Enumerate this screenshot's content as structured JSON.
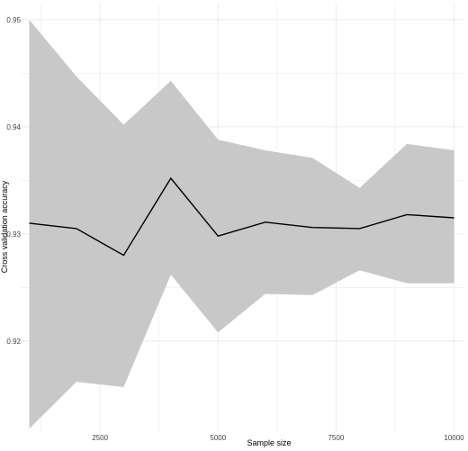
{
  "chart_data": {
    "type": "line",
    "xlabel": "Sample size",
    "ylabel": "Cross validation accuracy",
    "xlim": [
      800,
      10200
    ],
    "ylim": [
      0.9115,
      0.9515
    ],
    "x_ticks": [
      2500,
      5000,
      7500,
      10000
    ],
    "x_tick_labels": [
      "2500",
      "5000",
      "7500",
      "10000"
    ],
    "y_ticks": [
      0.92,
      0.93,
      0.94,
      0.95
    ],
    "y_tick_labels": [
      "0.92",
      "0.93",
      "0.94",
      "0.95"
    ],
    "grid": true,
    "series": [
      {
        "x": [
          1000,
          2000,
          3000,
          4000,
          5000,
          6000,
          7000,
          8000,
          9000,
          10000
        ],
        "y": [
          0.931,
          0.9305,
          0.928,
          0.9352,
          0.9298,
          0.9311,
          0.9306,
          0.9305,
          0.9318,
          0.9315
        ],
        "upper": [
          0.95,
          0.9447,
          0.9402,
          0.9443,
          0.9388,
          0.9378,
          0.9371,
          0.9343,
          0.9384,
          0.9378
        ],
        "lower": [
          0.9118,
          0.9162,
          0.9157,
          0.9262,
          0.9208,
          0.9244,
          0.9243,
          0.9266,
          0.9254,
          0.9254
        ]
      }
    ],
    "colors": {
      "ribbon": "#c8c8c8",
      "line": "#000000",
      "grid": "#ebebeb"
    }
  }
}
